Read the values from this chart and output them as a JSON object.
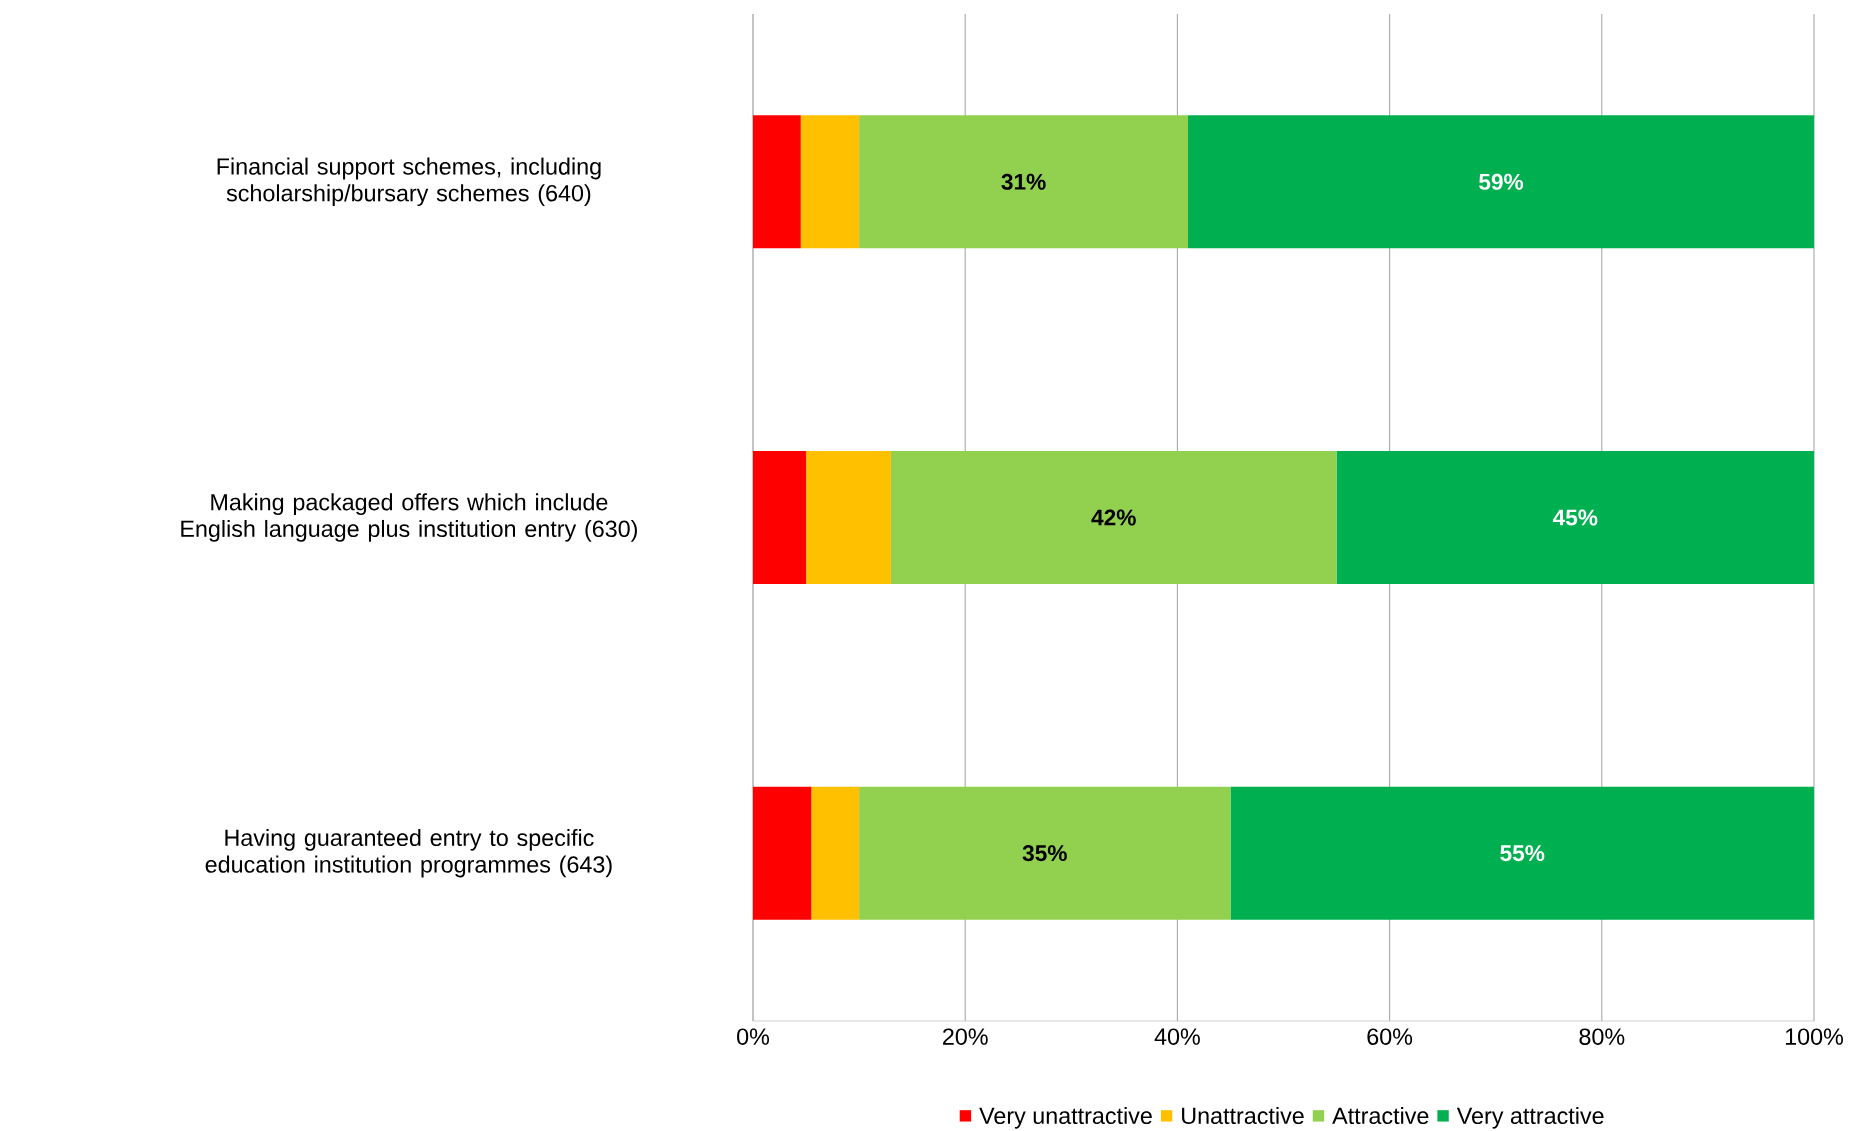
{
  "chart_data": {
    "type": "bar",
    "orientation": "horizontal",
    "stacked": true,
    "categories": [
      "Financial support schemes, including scholarship/bursary schemes (640)",
      "Making packaged offers which include English language plus institution entry (630)",
      "Having guaranteed entry to specific education institution programmes (643)"
    ],
    "series": [
      {
        "name": "Very unattractive",
        "color": "#ff0000",
        "values": [
          4.5,
          5,
          5.5
        ]
      },
      {
        "name": "Unattractive",
        "color": "#ffc000",
        "values": [
          5.5,
          8,
          4.5
        ]
      },
      {
        "name": "Attractive",
        "color": "#92d050",
        "values": [
          31,
          42,
          35
        ],
        "value_labels": [
          "31%",
          "42%",
          "35%"
        ]
      },
      {
        "name": "Very attractive",
        "color": "#00b050",
        "values": [
          59,
          45,
          55
        ],
        "value_labels": [
          "59%",
          "45%",
          "55%"
        ]
      }
    ],
    "xlim": [
      0,
      100
    ],
    "xticks": [
      {
        "value": 0,
        "label": "0%"
      },
      {
        "value": 20,
        "label": "20%"
      },
      {
        "value": 40,
        "label": "40%"
      },
      {
        "value": 60,
        "label": "60%"
      },
      {
        "value": 80,
        "label": "80%"
      },
      {
        "value": 100,
        "label": "100%"
      }
    ],
    "grid": "x",
    "legend": "bottom"
  }
}
